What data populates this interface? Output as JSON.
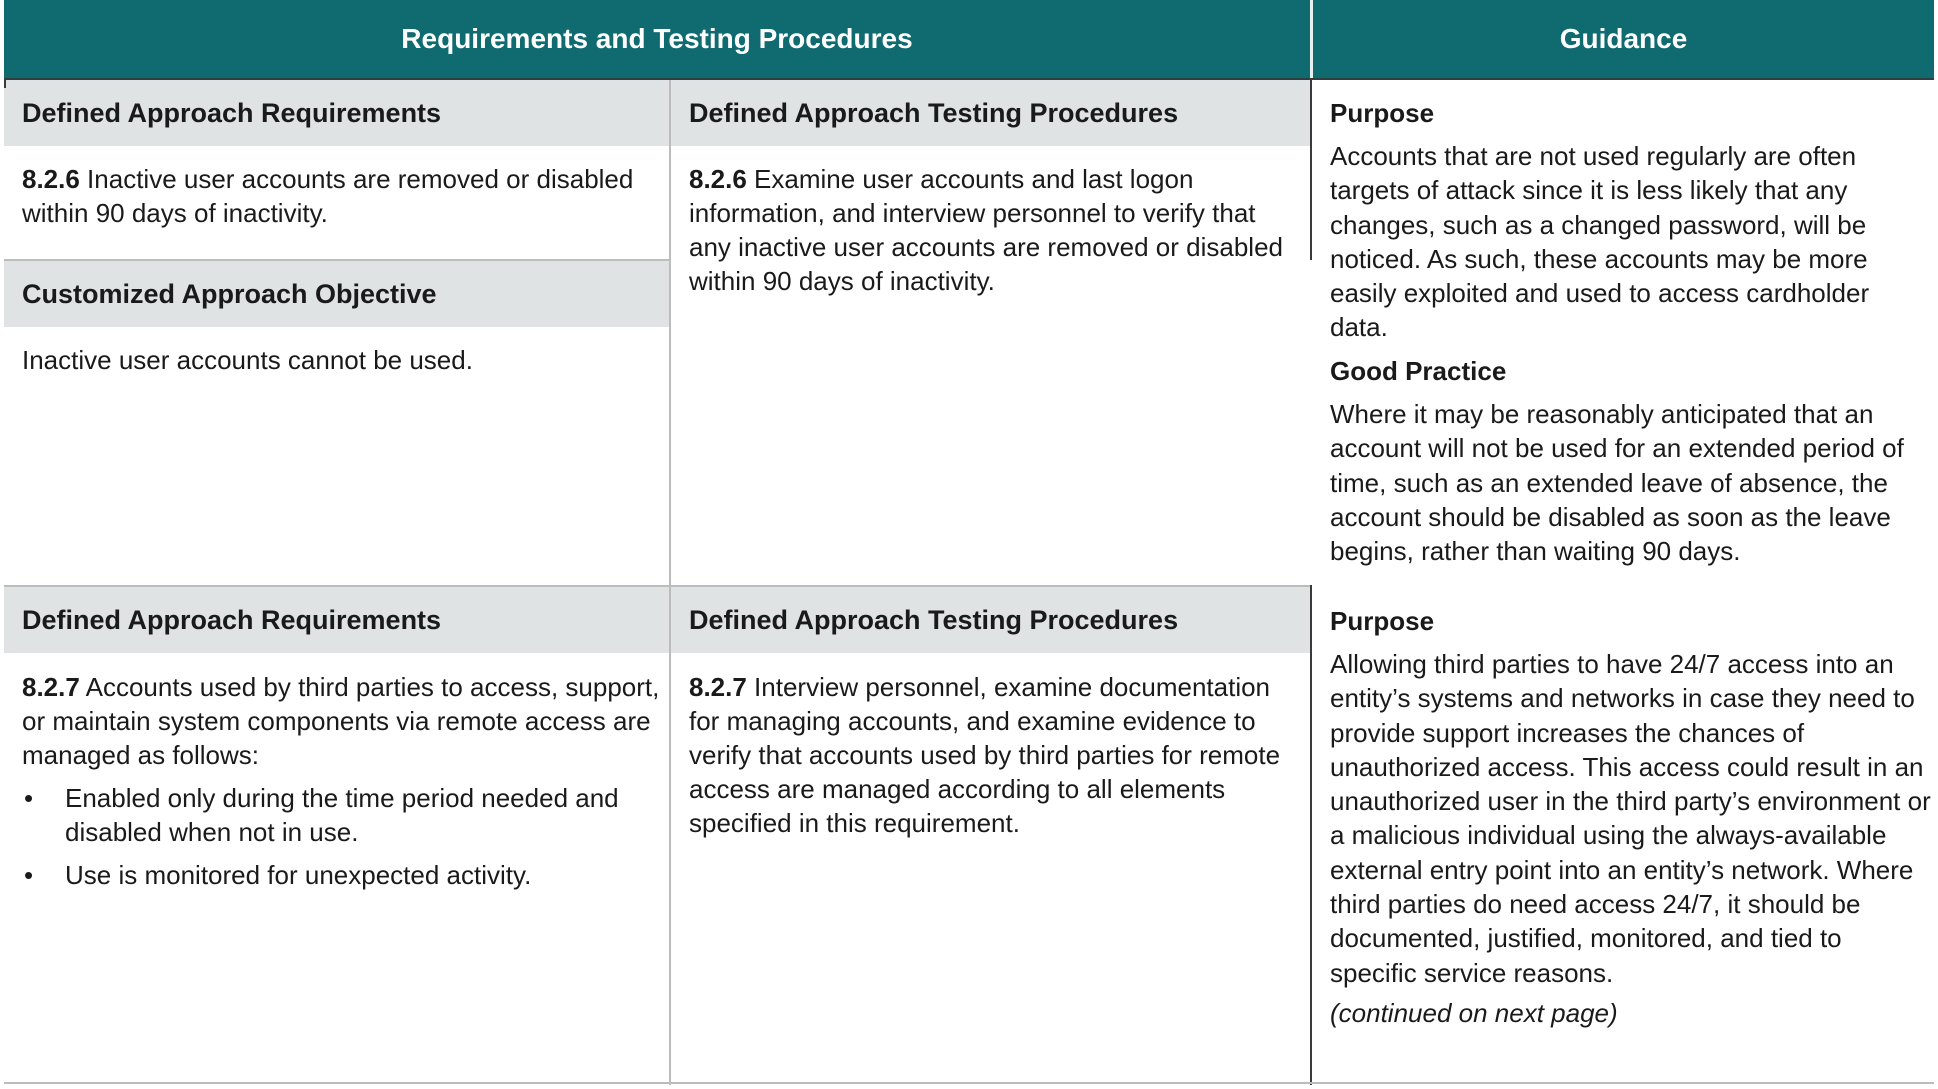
{
  "header": {
    "left_title": "Requirements and Testing Procedures",
    "right_title": "Guidance"
  },
  "rows": [
    {
      "req_heading": "Defined Approach Requirements",
      "req_number": "8.2.6",
      "req_text": " Inactive user accounts are removed or disabled within 90 days of inactivity.",
      "custom_heading": "Customized Approach Objective",
      "custom_text": "Inactive user accounts cannot be used.",
      "test_heading": "Defined Approach Testing Procedures",
      "test_number": "8.2.6",
      "test_text": " Examine user accounts and last logon information, and interview personnel to verify that any inactive user accounts are removed or disabled within 90 days of inactivity.",
      "guidance": {
        "purpose_title": "Purpose",
        "purpose_text": "Accounts that are not used regularly are often targets of attack since it is less likely that any changes, such as a changed password, will be noticed. As such, these accounts may be more easily exploited and used to access cardholder data.",
        "good_practice_title": "Good Practice",
        "good_practice_text": "Where it may be reasonably anticipated that an account will not be used for an extended period of time, such as an extended leave of absence, the account should be disabled as soon as the leave begins, rather than waiting 90 days."
      }
    },
    {
      "req_heading": "Defined Approach Requirements",
      "req_number": "8.2.7",
      "req_text": " Accounts used by third parties to access, support, or maintain system components via remote access are managed as follows:",
      "req_bullets": [
        "Enabled only during the time period needed and disabled when not in use.",
        "Use is monitored for unexpected activity."
      ],
      "bullet_char": "•",
      "test_heading": "Defined Approach Testing Procedures",
      "test_number": "8.2.7",
      "test_text": " Interview personnel, examine documentation for managing accounts, and examine evidence to verify that accounts used by third parties for remote access are managed according to all elements specified in this requirement.",
      "guidance": {
        "purpose_title": "Purpose",
        "purpose_text": "Allowing third parties to have 24/7 access into an entity’s systems and networks in case they need to provide support increases the chances of unauthorized access. This access could result in an unauthorized user in the third party’s environment or a malicious individual using the always-available external entry point into an entity’s network. Where third parties do need access 24/7, it should be documented, justified, monitored, and tied to specific service reasons.",
        "continued_note": "(continued on next page)"
      }
    }
  ],
  "colors": {
    "header_bg": "#0f6b70",
    "band_bg": "#dfe3e4"
  }
}
